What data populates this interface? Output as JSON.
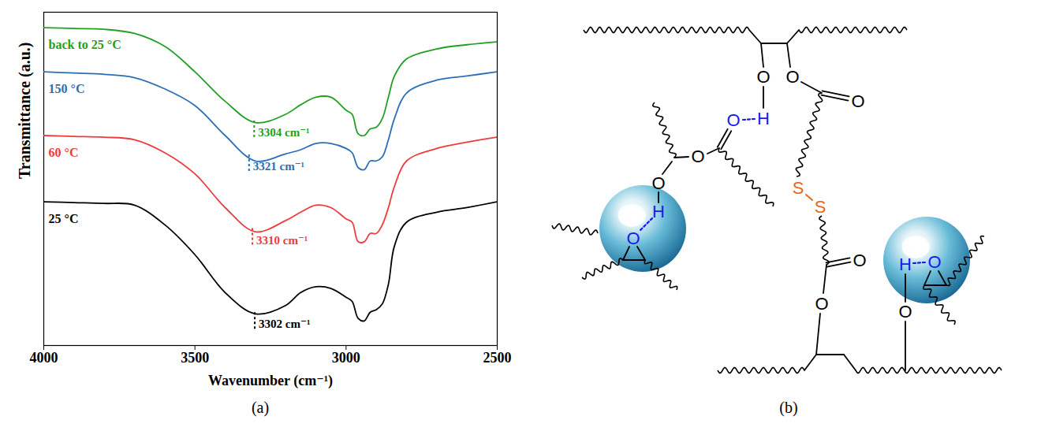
{
  "panel_labels": [
    "(a)",
    "(b)"
  ],
  "chart_data": {
    "type": "line",
    "xlabel": "Wavenumber (cm⁻¹)",
    "ylabel": "Transmittance (a.u.)",
    "x": [
      4000,
      3900,
      3800,
      3700,
      3600,
      3500,
      3400,
      3300,
      3200,
      3150,
      3100,
      3050,
      3000,
      2980,
      2960,
      2940,
      2920,
      2900,
      2880,
      2860,
      2840,
      2800,
      2700,
      2600,
      2500
    ],
    "series": [
      {
        "name": "25 °C",
        "color": "#000000",
        "values": [
          5.45,
          5.43,
          5.41,
          5.37,
          4.9,
          4.18,
          3.27,
          2.76,
          2.96,
          3.27,
          3.41,
          3.37,
          3.16,
          3.06,
          2.65,
          2.59,
          2.8,
          2.86,
          3.0,
          3.47,
          4.39,
          4.96,
          5.2,
          5.31,
          5.45
        ]
      },
      {
        "name": "60 °C",
        "color": "#ee3b3b",
        "values": [
          7.04,
          7.02,
          7.0,
          6.94,
          6.63,
          6.12,
          5.31,
          4.73,
          5.0,
          5.2,
          5.37,
          5.31,
          5.04,
          4.96,
          4.49,
          4.49,
          4.69,
          4.69,
          4.9,
          5.31,
          5.82,
          6.43,
          6.73,
          6.88,
          7.0
        ]
      },
      {
        "name": "150 °C",
        "color": "#2a6fb5",
        "values": [
          8.57,
          8.54,
          8.51,
          8.43,
          8.16,
          7.76,
          7.04,
          6.43,
          6.6,
          6.7,
          6.85,
          6.85,
          6.73,
          6.63,
          6.27,
          6.22,
          6.43,
          6.43,
          6.53,
          6.94,
          7.45,
          8.06,
          8.37,
          8.47,
          8.57
        ]
      },
      {
        "name": "back to 25 °C",
        "color": "#22a022",
        "values": [
          9.63,
          9.61,
          9.59,
          9.49,
          9.18,
          8.57,
          7.86,
          7.35,
          7.55,
          7.78,
          7.96,
          7.96,
          7.65,
          7.55,
          7.08,
          7.04,
          7.2,
          7.24,
          7.45,
          7.96,
          8.47,
          8.88,
          9.12,
          9.22,
          9.29
        ]
      }
    ],
    "xlim": [
      4000,
      2500
    ],
    "xticks": [
      4000,
      3500,
      3000,
      2500
    ],
    "ylim": [
      2,
      10
    ],
    "tick_labels": "x",
    "annotations": [
      {
        "series": "25 °C",
        "x": 3302,
        "label": "3302 cm⁻¹"
      },
      {
        "series": "60 °C",
        "x": 3310,
        "label": "3310 cm⁻¹"
      },
      {
        "series": "150 °C",
        "x": 3321,
        "label": "3321 cm⁻¹"
      },
      {
        "series": "back to 25 °C",
        "x": 3304,
        "label": "3304 cm⁻¹"
      }
    ]
  },
  "diagram": {
    "atoms": [
      {
        "text": "O",
        "color": "#000000"
      },
      {
        "text": "H",
        "color": "#1a1aee"
      },
      {
        "text": "O",
        "color": "#000000"
      },
      {
        "text": "O",
        "color": "#000000"
      },
      {
        "text": "S",
        "color": "#e8691c"
      },
      {
        "text": "S",
        "color": "#e8691c"
      },
      {
        "text": "O",
        "color": "#000000"
      },
      {
        "text": "O",
        "color": "#000000"
      },
      {
        "text": "O",
        "color": "#1a1aee"
      },
      {
        "text": "O",
        "color": "#000000"
      },
      {
        "text": "O",
        "color": "#000000"
      },
      {
        "text": "H",
        "color": "#1a1aee"
      },
      {
        "text": "O",
        "color": "#1a1aee"
      },
      {
        "text": "O",
        "color": "#000000"
      },
      {
        "text": "H",
        "color": "#1a1aee"
      },
      {
        "text": "O",
        "color": "#1a1aee"
      }
    ]
  }
}
